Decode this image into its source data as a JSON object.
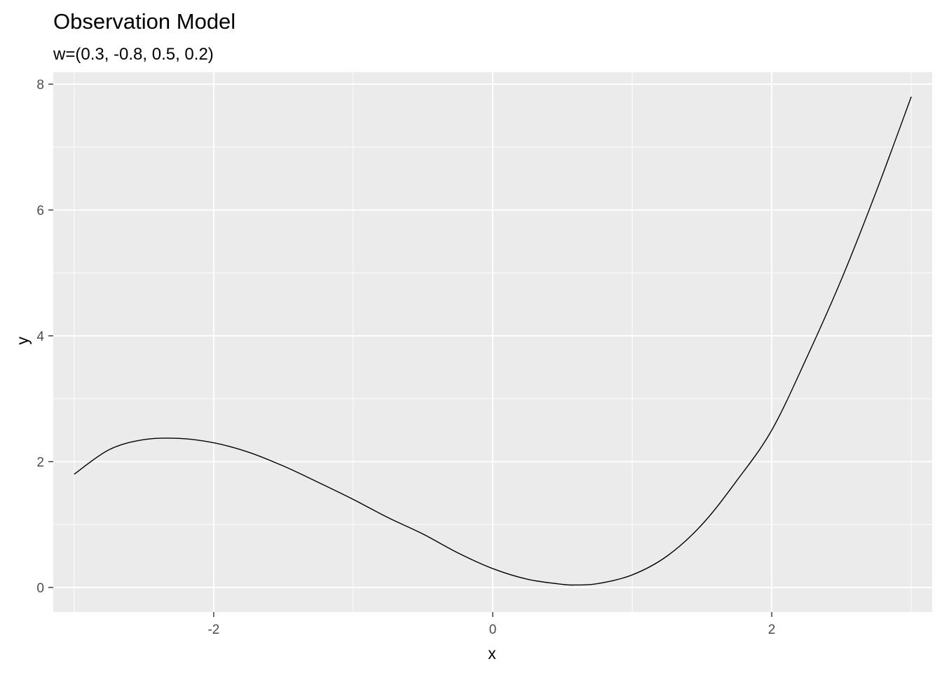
{
  "chart_data": {
    "type": "line",
    "title": "Observation Model",
    "subtitle": "w=(0.3, -0.8, 0.5, 0.2)",
    "xlabel": "x",
    "ylabel": "y",
    "xlim": [
      -3.15,
      3.15
    ],
    "ylim": [
      -0.39,
      8.19
    ],
    "x_ticks": [
      -2,
      0,
      2
    ],
    "x_tick_labels": [
      "-2",
      "0",
      "2"
    ],
    "y_ticks": [
      0,
      2,
      4,
      6,
      8
    ],
    "y_tick_labels": [
      "0",
      "2",
      "4",
      "6",
      "8"
    ],
    "grid": true,
    "legend": "none",
    "colors": {
      "panel": "#EBEBEB",
      "grid": "#FFFFFF",
      "line": "#000000"
    },
    "series": [
      {
        "x": [
          -3.0,
          -2.75,
          -2.5,
          -2.25,
          -2.0,
          -1.75,
          -1.5,
          -1.25,
          -1.0,
          -0.75,
          -0.5,
          -0.25,
          0.0,
          0.25,
          0.5,
          0.6,
          0.75,
          1.0,
          1.25,
          1.5,
          1.75,
          2.0,
          2.25,
          2.5,
          2.75,
          3.0
        ],
        "y": [
          1.8,
          2.19,
          2.35,
          2.37,
          2.3,
          2.15,
          1.93,
          1.67,
          1.4,
          1.11,
          0.85,
          0.55,
          0.3,
          0.13,
          0.05,
          0.04,
          0.06,
          0.2,
          0.5,
          1.0,
          1.7,
          2.5,
          3.65,
          4.9,
          6.3,
          7.8
        ]
      }
    ]
  }
}
